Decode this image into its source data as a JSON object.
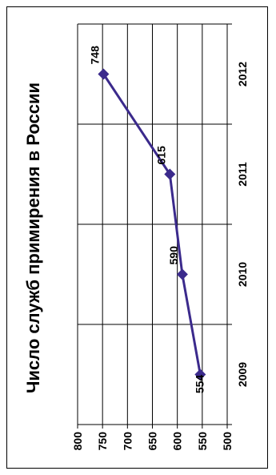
{
  "chart_data": {
    "type": "line",
    "title": "Число служб примирения в России",
    "categories": [
      "2009",
      "2010",
      "2011",
      "2012"
    ],
    "series": [
      {
        "values": [
          554,
          590,
          615,
          748
        ],
        "color": "#3B2A8C",
        "marker": "diamond"
      }
    ],
    "data_labels": [
      "554",
      "590",
      "615",
      "748"
    ],
    "y_ticks": [
      "500",
      "550",
      "600",
      "650",
      "700",
      "750",
      "800"
    ],
    "ylim": [
      500,
      800
    ],
    "grid": true,
    "orientation": "rotated-90-ccw"
  }
}
